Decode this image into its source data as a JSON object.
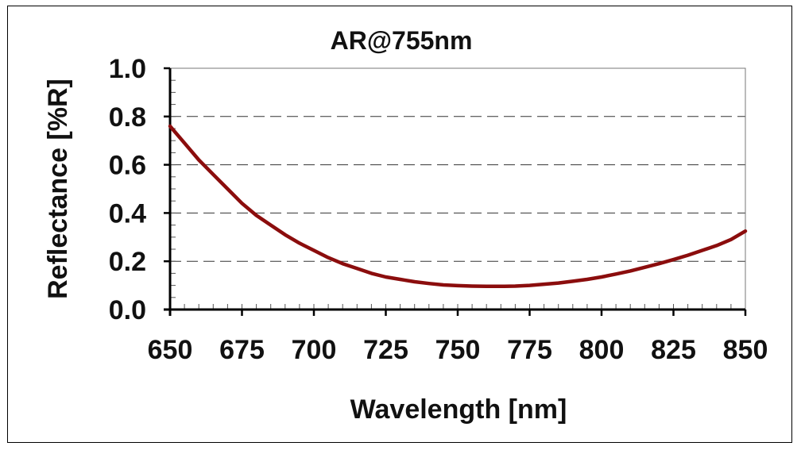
{
  "chart_data": {
    "type": "line",
    "title": "AR@755nm",
    "xlabel": "Wavelength [nm]",
    "ylabel": "Reflectance [%R]",
    "xlim": [
      650,
      850
    ],
    "ylim": [
      0.0,
      1.0
    ],
    "xticks": [
      650,
      675,
      700,
      725,
      750,
      775,
      800,
      825,
      850
    ],
    "xtick_labels": [
      "650",
      "675",
      "700",
      "725",
      "750",
      "775",
      "800",
      "825",
      "850"
    ],
    "yticks": [
      0.0,
      0.2,
      0.4,
      0.6,
      0.8,
      1.0
    ],
    "ytick_labels": [
      "0.0",
      "0.2",
      "0.4",
      "0.6",
      "0.8",
      "1.0"
    ],
    "grid": "horizontal dashed",
    "series": [
      {
        "color": "#8b0d0d",
        "x": [
          650,
          655,
          660,
          665,
          670,
          675,
          680,
          685,
          690,
          695,
          700,
          705,
          710,
          715,
          720,
          725,
          730,
          735,
          740,
          745,
          750,
          755,
          760,
          765,
          770,
          775,
          780,
          785,
          790,
          795,
          800,
          805,
          810,
          815,
          820,
          825,
          830,
          835,
          840,
          845,
          850
        ],
        "y": [
          0.76,
          0.69,
          0.62,
          0.56,
          0.5,
          0.44,
          0.39,
          0.35,
          0.31,
          0.275,
          0.245,
          0.215,
          0.19,
          0.17,
          0.15,
          0.135,
          0.125,
          0.115,
          0.108,
          0.102,
          0.099,
          0.097,
          0.096,
          0.096,
          0.097,
          0.1,
          0.105,
          0.11,
          0.117,
          0.125,
          0.135,
          0.147,
          0.16,
          0.175,
          0.19,
          0.207,
          0.225,
          0.245,
          0.265,
          0.29,
          0.325
        ]
      }
    ]
  }
}
